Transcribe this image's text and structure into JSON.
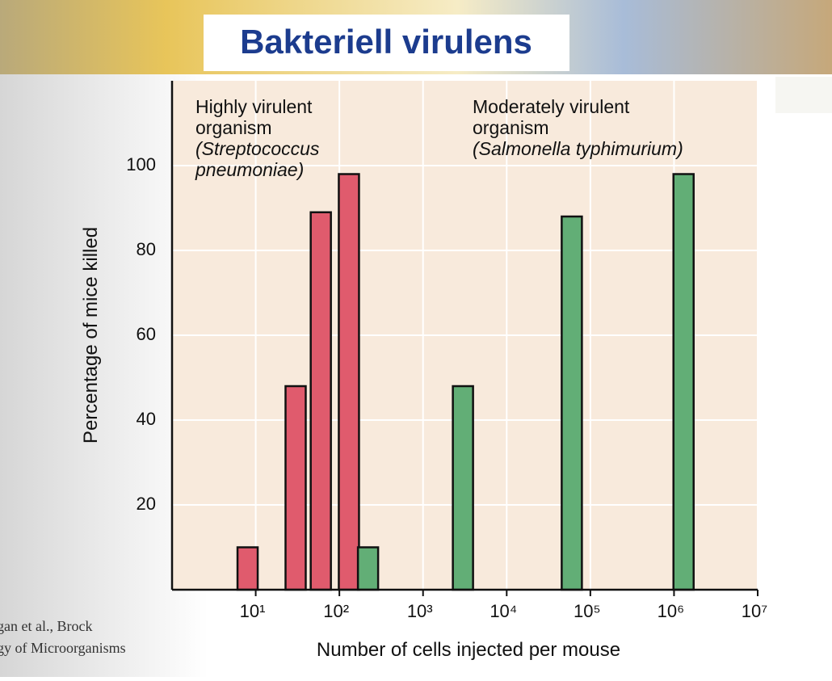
{
  "title": "Bakteriell virulens",
  "source": [
    "gan et al., Brock",
    "gy of Microorganisms"
  ],
  "chart_data": {
    "type": "bar",
    "x_label": "Number of cells injected per mouse",
    "y_label": "Percentage of mice killed",
    "xscale": "log",
    "xlim": [
      1,
      10000000
    ],
    "ylim": [
      0,
      120
    ],
    "xticks": [
      {
        "value": 10,
        "label": "10¹"
      },
      {
        "value": 100,
        "label": "10²"
      },
      {
        "value": 1000,
        "label": "10³"
      },
      {
        "value": 10000,
        "label": "10⁴"
      },
      {
        "value": 100000,
        "label": "10⁵"
      },
      {
        "value": 1000000,
        "label": "10⁶"
      },
      {
        "value": 10000000,
        "label": "10⁷"
      }
    ],
    "yticks": [
      20,
      40,
      60,
      80,
      100
    ],
    "grid": true,
    "series": [
      {
        "color": "#e05b6d",
        "x": [
          8,
          30,
          60,
          130
        ],
        "values": [
          10,
          48,
          89,
          98
        ]
      },
      {
        "color": "#62ae76",
        "x": [
          220,
          3000,
          60000,
          1300000
        ],
        "values": [
          10,
          48,
          88,
          98
        ]
      }
    ],
    "annotations": [
      {
        "lines": [
          "Highly virulent",
          "organism",
          "(Streptococcus",
          "pneumoniae)"
        ],
        "italic_from": 2
      },
      {
        "lines": [
          "Moderately virulent",
          "organism",
          "(Salmonella typhimurium)"
        ],
        "italic_from": 2
      }
    ]
  }
}
